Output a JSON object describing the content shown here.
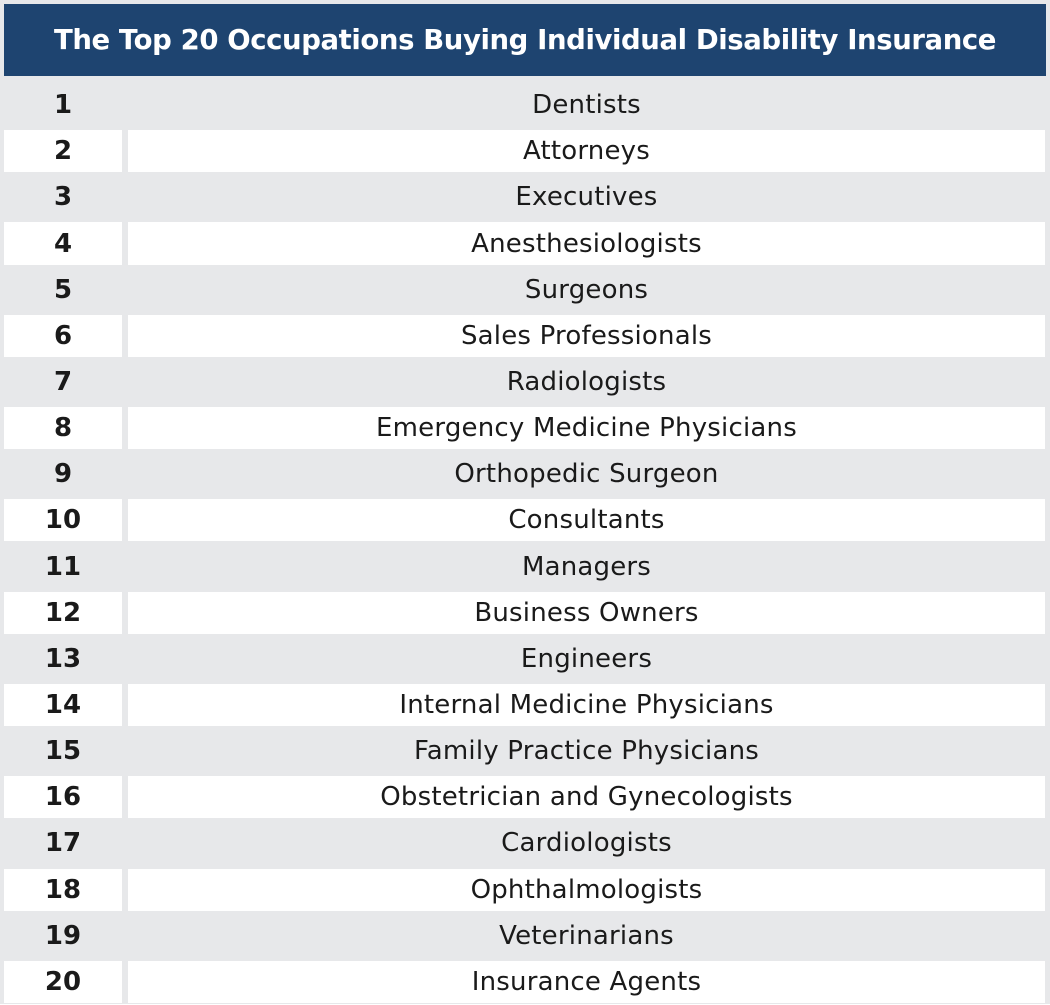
{
  "table": {
    "title": "The Top 20 Occupations Buying Individual Disability Insurance",
    "colors": {
      "header_bg": "#1e4470",
      "header_text": "#ffffff",
      "row_shaded": "#e7e8ea",
      "row_white": "#ffffff"
    },
    "rows": [
      {
        "rank": "1",
        "occupation": "Dentists"
      },
      {
        "rank": "2",
        "occupation": "Attorneys"
      },
      {
        "rank": "3",
        "occupation": "Executives"
      },
      {
        "rank": "4",
        "occupation": "Anesthesiologists"
      },
      {
        "rank": "5",
        "occupation": "Surgeons"
      },
      {
        "rank": "6",
        "occupation": "Sales Professionals"
      },
      {
        "rank": "7",
        "occupation": "Radiologists"
      },
      {
        "rank": "8",
        "occupation": "Emergency Medicine Physicians"
      },
      {
        "rank": "9",
        "occupation": "Orthopedic Surgeon"
      },
      {
        "rank": "10",
        "occupation": "Consultants"
      },
      {
        "rank": "11",
        "occupation": "Managers"
      },
      {
        "rank": "12",
        "occupation": "Business Owners"
      },
      {
        "rank": "13",
        "occupation": "Engineers"
      },
      {
        "rank": "14",
        "occupation": "Internal Medicine Physicians"
      },
      {
        "rank": "15",
        "occupation": "Family Practice Physicians"
      },
      {
        "rank": "16",
        "occupation": "Obstetrician and Gynecologists"
      },
      {
        "rank": "17",
        "occupation": "Cardiologists"
      },
      {
        "rank": "18",
        "occupation": "Ophthalmologists"
      },
      {
        "rank": "19",
        "occupation": "Veterinarians"
      },
      {
        "rank": "20",
        "occupation": "Insurance Agents"
      }
    ]
  }
}
